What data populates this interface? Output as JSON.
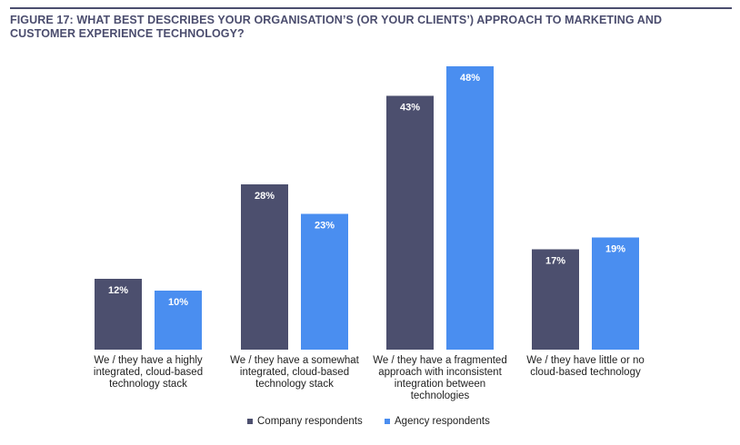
{
  "title": "FIGURE 17: WHAT BEST DESCRIBES YOUR ORGANISATION’S (OR YOUR CLIENTS’) APPROACH TO MARKETING AND CUSTOMER EXPERIENCE TECHNOLOGY?",
  "colors": {
    "company": "#4c4f6e",
    "agency": "#4a8ef0",
    "title": "#4b4d6e"
  },
  "chart_data": {
    "type": "bar",
    "categories": [
      [
        "We / they have a highly",
        "integrated, cloud-based",
        "technology stack"
      ],
      [
        "We / they have a somewhat",
        "integrated, cloud-based",
        "technology stack"
      ],
      [
        "We / they have a fragmented",
        "approach with inconsistent",
        "integration between",
        "technologies"
      ],
      [
        "We / they have little or no",
        "cloud-based technology"
      ]
    ],
    "series": [
      {
        "name": "Company respondents",
        "values": [
          12,
          28,
          43,
          17
        ],
        "labels": [
          "12%",
          "28%",
          "43%",
          "17%"
        ]
      },
      {
        "name": "Agency respondents",
        "values": [
          10,
          23,
          48,
          19
        ],
        "labels": [
          "10%",
          "23%",
          "48%",
          "19%"
        ]
      }
    ],
    "ylim": [
      0,
      48
    ],
    "grid": false,
    "legend": "bottom"
  }
}
